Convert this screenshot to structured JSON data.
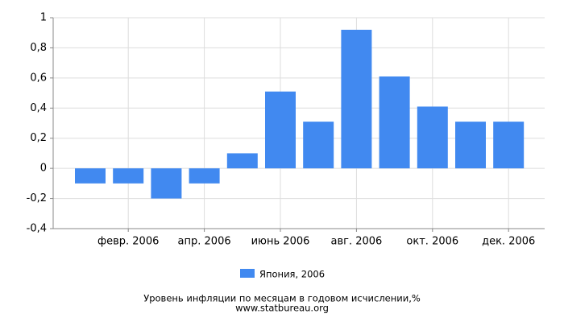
{
  "chart_data": {
    "type": "bar",
    "title": "Уровень инфляции по месяцам в годовом исчислении,%",
    "subtitle": "www.statbureau.org",
    "categories": [
      null,
      "февр. 2006",
      null,
      "апр. 2006",
      null,
      "июнь 2006",
      null,
      "авг. 2006",
      null,
      "окт. 2006",
      null,
      "дек. 2006"
    ],
    "series": [
      {
        "name": "Япония, 2006",
        "color": "#4189f0",
        "values": [
          -0.1,
          -0.1,
          -0.2,
          -0.1,
          0.1,
          0.51,
          0.31,
          0.92,
          0.61,
          0.41,
          0.31,
          0.31
        ]
      }
    ],
    "ylim": [
      -0.4,
      1
    ],
    "yticks": [
      {
        "value": -0.4,
        "label": "-0,4"
      },
      {
        "value": -0.2,
        "label": "-0,2"
      },
      0,
      {
        "value": 0.2,
        "label": "0,2"
      },
      {
        "value": 0.4,
        "label": "0,4"
      },
      {
        "value": 0.6,
        "label": "0,6"
      },
      {
        "value": 0.8,
        "label": "0,8"
      },
      1
    ],
    "grid": true
  }
}
